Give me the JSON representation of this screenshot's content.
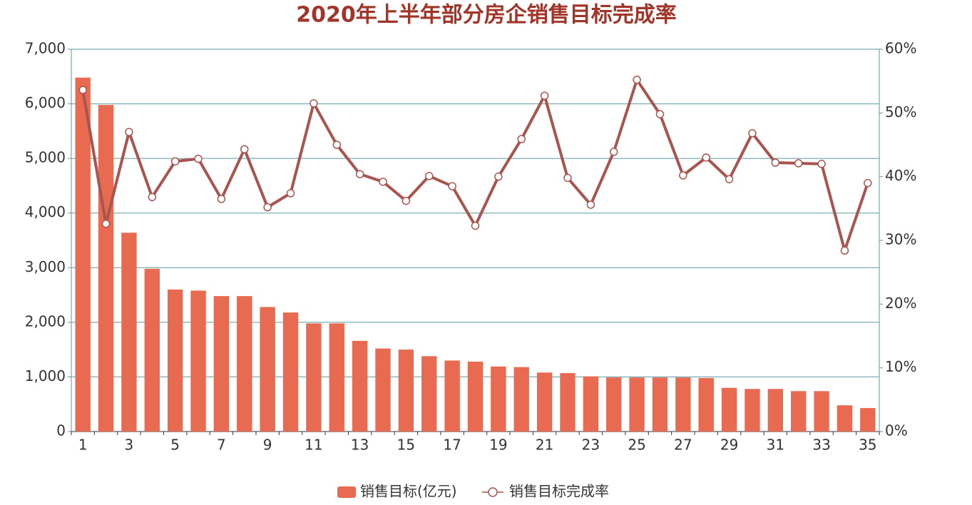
{
  "chart_data": {
    "type": "bar-line",
    "title": "2020年上半年部分房企销售目标完成率",
    "categories": [
      "1",
      null,
      "3",
      null,
      "5",
      null,
      "7",
      null,
      "9",
      null,
      "11",
      null,
      "13",
      null,
      "15",
      null,
      "17",
      null,
      "19",
      null,
      "21",
      null,
      "23",
      null,
      "25",
      null,
      "27",
      null,
      "29",
      null,
      "31",
      null,
      "33",
      null,
      "35"
    ],
    "series": [
      {
        "name": "销售目标(亿元)",
        "type": "bar",
        "color": "#e86b51",
        "values": [
          6480,
          5980,
          3640,
          2980,
          2600,
          2580,
          2480,
          2480,
          2280,
          2180,
          1980,
          1980,
          1660,
          1520,
          1500,
          1380,
          1300,
          1280,
          1190,
          1180,
          1080,
          1070,
          1010,
          990,
          990,
          990,
          990,
          980,
          800,
          780,
          780,
          740,
          740,
          480,
          430
        ]
      },
      {
        "name": "销售目标完成率",
        "type": "line",
        "axis": "y2",
        "color": "#a8554f",
        "values": [
          53.6,
          32.6,
          47.0,
          36.8,
          42.4,
          42.8,
          36.5,
          44.3,
          35.2,
          37.4,
          51.5,
          45.0,
          40.4,
          39.2,
          36.2,
          40.1,
          38.5,
          32.3,
          40.0,
          45.9,
          52.7,
          39.8,
          35.6,
          43.9,
          55.2,
          49.8,
          40.2,
          43.0,
          39.6,
          46.8,
          42.2,
          42.1,
          42.0,
          28.4,
          39.0
        ]
      }
    ],
    "ylim": [
      0,
      7000
    ],
    "yticks": [
      0,
      {
        "value": 1000,
        "label": "1,000"
      },
      {
        "value": 2000,
        "label": "2,000"
      },
      {
        "value": 3000,
        "label": "3,000"
      },
      {
        "value": 4000,
        "label": "4,000"
      },
      {
        "value": 5000,
        "label": "5,000"
      },
      {
        "value": 6000,
        "label": "6,000"
      },
      {
        "value": 7000,
        "label": "7,000"
      }
    ],
    "y2lim": [
      0,
      60
    ],
    "y2ticks": [
      {
        "value": 0,
        "label": "0%"
      },
      {
        "value": 10,
        "label": "10%"
      },
      {
        "value": 20,
        "label": "20%"
      },
      {
        "value": 30,
        "label": "30%"
      },
      {
        "value": 40,
        "label": "40%"
      },
      {
        "value": 50,
        "label": "50%"
      },
      {
        "value": 60,
        "label": "60%"
      }
    ],
    "grid": true,
    "legend": "bottom"
  }
}
